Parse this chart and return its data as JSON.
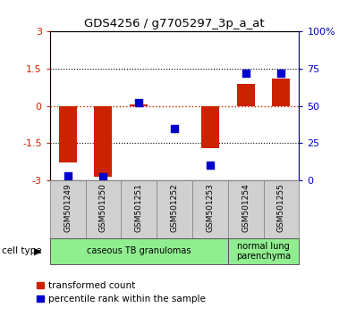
{
  "title": "GDS4256 / g7705297_3p_a_at",
  "samples": [
    "GSM501249",
    "GSM501250",
    "GSM501251",
    "GSM501252",
    "GSM501253",
    "GSM501254",
    "GSM501255"
  ],
  "red_values": [
    -2.3,
    -2.85,
    0.05,
    -0.02,
    -1.72,
    0.9,
    1.1
  ],
  "blue_values_pct": [
    3,
    2,
    52,
    35,
    10,
    72,
    72
  ],
  "ylim_left": [
    -3,
    3
  ],
  "ylim_right": [
    0,
    100
  ],
  "hline_red": 0,
  "hlines_black": [
    1.5,
    -1.5
  ],
  "cell_groups": [
    {
      "label": "caseous TB granulomas",
      "start": 0,
      "end": 5,
      "color": "#90ee90"
    },
    {
      "label": "normal lung\nparenchyma",
      "start": 5,
      "end": 7,
      "color": "#90ee90"
    }
  ],
  "bar_color": "#cc2200",
  "dot_color": "#0000cc",
  "bar_width": 0.5,
  "dot_size": 40,
  "legend_red": "transformed count",
  "legend_blue": "percentile rank within the sample",
  "cell_type_label": "cell type",
  "tick_color_left": "#cc2200",
  "tick_color_right": "#0000cc",
  "sample_box_color": "#d0d0d0",
  "sample_box_edge": "#888888",
  "yticks_left": [
    -3,
    -1.5,
    0,
    1.5,
    3
  ],
  "ytick_labels_left": [
    "-3",
    "-1.5",
    "0",
    "1.5",
    "3"
  ],
  "yticks_right": [
    0,
    25,
    50,
    75,
    100
  ],
  "ytick_labels_right": [
    "0",
    "25",
    "50",
    "75",
    "100%"
  ]
}
